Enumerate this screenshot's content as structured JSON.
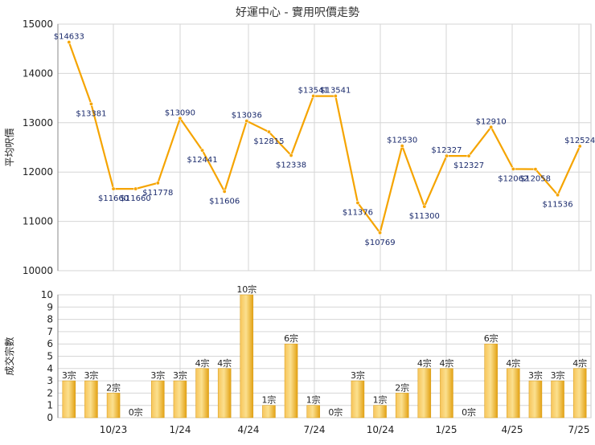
{
  "chart_data": [
    {
      "type": "line",
      "title": "好運中心 - 實用呎價走勢",
      "ylabel": "平均呎價",
      "ylim": [
        10000,
        15000
      ],
      "yticks": [
        10000,
        11000,
        12000,
        13000,
        14000,
        15000
      ],
      "x_tick_labels": [
        "10/23",
        "1/24",
        "4/24",
        "7/24",
        "10/24",
        "1/25",
        "4/25",
        "7/25"
      ],
      "grid": true,
      "line_color": "#f5a400",
      "values": [
        14633,
        13381,
        11660,
        11660,
        11778,
        13090,
        12441,
        11606,
        13036,
        12815,
        12338,
        13541,
        13541,
        11376,
        10769,
        12530,
        11300,
        12327,
        12327,
        12910,
        12062,
        12058,
        11536,
        12524
      ],
      "labels": [
        "$14633",
        "$13381",
        "$11660",
        "$11660",
        "$11778",
        "$13090",
        "$12441",
        "$11606",
        "$13036",
        "$12815",
        "$12338",
        "$13541",
        "$13541",
        "$11376",
        "$10769",
        "$12530",
        "$11300",
        "$12327",
        "$12327",
        "$12910",
        "$12062",
        "$12058",
        "$11536",
        "$12524"
      ]
    },
    {
      "type": "bar",
      "ylabel": "成交宗數",
      "ylim": [
        0,
        10
      ],
      "yticks": [
        0,
        1,
        2,
        3,
        4,
        5,
        6,
        7,
        8,
        9,
        10
      ],
      "x_tick_labels": [
        "10/23",
        "1/24",
        "4/24",
        "7/24",
        "10/24",
        "1/25",
        "4/25",
        "7/25"
      ],
      "grid": true,
      "bar_color": "#f2b01e",
      "values": [
        3,
        3,
        2,
        0,
        3,
        3,
        4,
        4,
        10,
        1,
        6,
        1,
        0,
        3,
        1,
        2,
        4,
        4,
        0,
        6,
        4,
        3,
        3,
        4
      ],
      "labels": [
        "3宗",
        "3宗",
        "2宗",
        "0宗",
        "3宗",
        "3宗",
        "4宗",
        "4宗",
        "10宗",
        "1宗",
        "6宗",
        "1宗",
        "0宗",
        "3宗",
        "1宗",
        "2宗",
        "4宗",
        "4宗",
        "0宗",
        "6宗",
        "4宗",
        "3宗",
        "3宗",
        "4宗"
      ]
    }
  ]
}
